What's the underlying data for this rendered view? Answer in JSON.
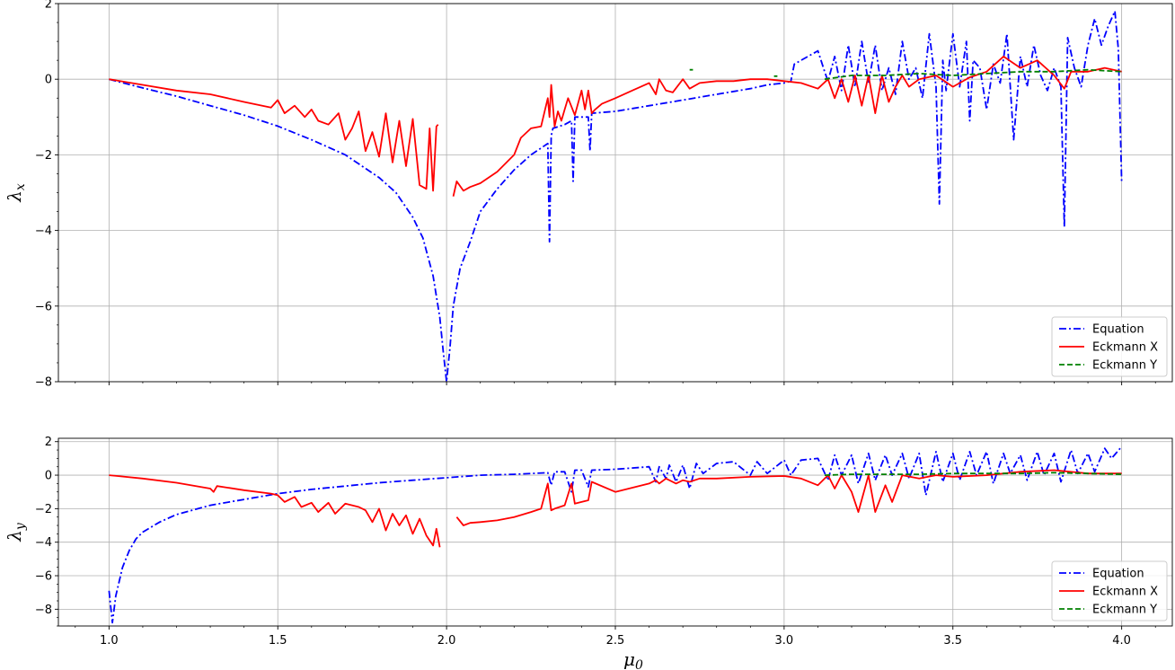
{
  "chart_data": [
    {
      "type": "line",
      "panel": "top",
      "ylabel_main": "λ",
      "ylabel_sub": "x",
      "xlabel": "",
      "xlim": [
        0.85,
        4.15
      ],
      "ylim": [
        -8,
        2
      ],
      "xticks": [
        1.0,
        1.5,
        2.0,
        2.5,
        3.0,
        3.5,
        4.0
      ],
      "xtick_labels": [
        "",
        "",
        "",
        "",
        "",
        "",
        ""
      ],
      "yticks": [
        -8,
        -6,
        -4,
        -2,
        0,
        2
      ],
      "ytick_labels": [
        "−8",
        "−6",
        "−4",
        "−2",
        "0",
        "2"
      ],
      "grid": true,
      "legend": "bottom-right",
      "series": [
        {
          "name": "Equation",
          "color": "#0000ff",
          "style": "dashdot",
          "x": [
            1.0,
            1.1,
            1.2,
            1.3,
            1.4,
            1.5,
            1.6,
            1.7,
            1.8,
            1.85,
            1.9,
            1.93,
            1.96,
            1.98,
            1.99,
            2.0,
            2.01,
            2.02,
            2.04,
            2.07,
            2.1,
            2.15,
            2.2,
            2.25,
            2.3,
            2.305,
            2.31,
            2.315,
            2.35,
            2.37,
            2.375,
            2.38,
            2.42,
            2.425,
            2.43,
            2.5,
            2.6,
            2.7,
            2.8,
            2.9,
            2.95,
            3.0,
            3.02,
            3.03,
            3.1,
            3.12,
            3.13,
            3.15,
            3.17,
            3.19,
            3.21,
            3.23,
            3.25,
            3.27,
            3.29,
            3.31,
            3.33,
            3.35,
            3.37,
            3.39,
            3.41,
            3.43,
            3.45,
            3.46,
            3.47,
            3.48,
            3.5,
            3.52,
            3.54,
            3.55,
            3.56,
            3.58,
            3.6,
            3.62,
            3.64,
            3.66,
            3.68,
            3.7,
            3.72,
            3.74,
            3.76,
            3.78,
            3.8,
            3.82,
            3.83,
            3.84,
            3.86,
            3.88,
            3.9,
            3.92,
            3.94,
            3.96,
            3.98,
            3.99,
            4.0
          ],
          "y": [
            0.0,
            -0.23,
            -0.45,
            -0.7,
            -0.95,
            -1.24,
            -1.6,
            -2.0,
            -2.6,
            -3.0,
            -3.65,
            -4.2,
            -5.2,
            -6.3,
            -7.2,
            -8.0,
            -7.1,
            -6.0,
            -5.0,
            -4.3,
            -3.5,
            -2.9,
            -2.4,
            -2.0,
            -1.7,
            -4.3,
            -1.5,
            -1.3,
            -1.2,
            -1.1,
            -2.7,
            -1.0,
            -1.0,
            -1.9,
            -0.9,
            -0.85,
            -0.7,
            -0.55,
            -0.4,
            -0.25,
            -0.15,
            -0.1,
            -0.05,
            0.4,
            0.75,
            0.2,
            -0.05,
            0.6,
            -0.3,
            0.9,
            -0.2,
            1.0,
            -0.1,
            0.9,
            -0.3,
            0.3,
            -0.4,
            1.0,
            0.0,
            0.3,
            -0.5,
            1.2,
            -0.2,
            -3.3,
            0.5,
            -0.3,
            1.2,
            -0.2,
            1.0,
            -1.1,
            0.5,
            0.3,
            -0.8,
            0.4,
            -0.1,
            1.2,
            -1.6,
            0.6,
            -0.2,
            0.9,
            0.1,
            -0.3,
            0.3,
            -0.2,
            -3.9,
            1.1,
            0.3,
            -0.2,
            0.9,
            1.6,
            0.9,
            1.4,
            1.8,
            0.8,
            -2.7
          ]
        },
        {
          "name": "Eckmann X",
          "color": "#ff0000",
          "style": "solid",
          "x": [
            1.0,
            1.1,
            1.2,
            1.3,
            1.4,
            1.48,
            1.5,
            1.52,
            1.55,
            1.58,
            1.6,
            1.62,
            1.65,
            1.68,
            1.7,
            1.72,
            1.74,
            1.76,
            1.78,
            1.8,
            1.82,
            1.84,
            1.86,
            1.88,
            1.9,
            1.92,
            1.94,
            1.95,
            1.96,
            1.97,
            1.975,
            null,
            2.02,
            2.03,
            2.05,
            2.07,
            2.1,
            2.15,
            2.2,
            2.22,
            2.25,
            2.28,
            2.3,
            2.305,
            2.31,
            2.32,
            2.33,
            2.34,
            2.35,
            2.36,
            2.38,
            2.4,
            2.41,
            2.42,
            2.43,
            2.44,
            2.46,
            2.5,
            2.55,
            2.6,
            2.62,
            2.63,
            2.65,
            2.67,
            2.7,
            2.72,
            2.75,
            2.8,
            2.85,
            2.9,
            2.95,
            3.0,
            3.05,
            3.1,
            3.13,
            3.15,
            3.17,
            3.19,
            3.21,
            3.23,
            3.25,
            3.27,
            3.29,
            3.31,
            3.33,
            3.35,
            3.37,
            3.4,
            3.45,
            3.5,
            3.55,
            3.6,
            3.65,
            3.7,
            3.75,
            3.8,
            3.83,
            3.85,
            3.9,
            3.95,
            4.0
          ],
          "y": [
            0.0,
            -0.15,
            -0.3,
            -0.4,
            -0.6,
            -0.75,
            -0.55,
            -0.9,
            -0.7,
            -1.0,
            -0.8,
            -1.1,
            -1.2,
            -0.9,
            -1.6,
            -1.3,
            -0.85,
            -1.9,
            -1.4,
            -2.05,
            -0.9,
            -2.2,
            -1.1,
            -2.3,
            -1.05,
            -2.8,
            -2.9,
            -1.3,
            -2.95,
            -1.25,
            -1.2,
            null,
            -3.1,
            -2.7,
            -2.95,
            -2.85,
            -2.75,
            -2.45,
            -2.0,
            -1.55,
            -1.3,
            -1.25,
            -0.5,
            -1.0,
            -0.15,
            -1.25,
            -0.85,
            -1.1,
            -0.8,
            -0.5,
            -0.95,
            -0.3,
            -0.8,
            -0.3,
            -0.9,
            -0.8,
            -0.65,
            -0.5,
            -0.3,
            -0.1,
            -0.4,
            0.0,
            -0.3,
            -0.35,
            0.0,
            -0.25,
            -0.1,
            -0.05,
            -0.05,
            0.0,
            0.0,
            -0.05,
            -0.1,
            -0.25,
            0.0,
            -0.5,
            0.0,
            -0.6,
            0.1,
            -0.7,
            0.1,
            -0.9,
            0.1,
            -0.6,
            -0.2,
            0.1,
            -0.2,
            0.0,
            0.1,
            -0.2,
            0.05,
            0.2,
            0.6,
            0.3,
            0.5,
            0.1,
            -0.25,
            0.2,
            0.2,
            0.3,
            0.2
          ]
        },
        {
          "name": "Eckmann Y",
          "color": "#008000",
          "style": "dashed",
          "x": [
            2.72,
            2.73,
            null,
            2.97,
            2.98,
            null,
            3.12,
            3.2,
            3.3,
            3.4,
            3.5,
            3.6,
            3.7,
            3.8,
            3.9,
            4.0
          ],
          "y": [
            0.25,
            0.25,
            null,
            0.08,
            0.08,
            null,
            0.0,
            0.1,
            0.1,
            0.15,
            0.1,
            0.15,
            0.2,
            0.2,
            0.25,
            0.2
          ]
        }
      ]
    },
    {
      "type": "line",
      "panel": "bottom",
      "ylabel_main": "λ",
      "ylabel_sub": "y",
      "xlabel_main": "μ",
      "xlabel_sub": "0",
      "xlim": [
        0.85,
        4.15
      ],
      "ylim": [
        -9,
        2.2
      ],
      "xticks": [
        1.0,
        1.5,
        2.0,
        2.5,
        3.0,
        3.5,
        4.0
      ],
      "xtick_labels": [
        "1.0",
        "1.5",
        "2.0",
        "2.5",
        "3.0",
        "3.5",
        "4.0"
      ],
      "yticks": [
        -8,
        -6,
        -4,
        -2,
        0,
        2
      ],
      "ytick_labels": [
        "−8",
        "−6",
        "−4",
        "−2",
        "0",
        "2"
      ],
      "grid": true,
      "legend": "bottom-right",
      "series": [
        {
          "name": "Equation",
          "color": "#0000ff",
          "style": "dashdot",
          "x": [
            1.0,
            1.01,
            1.02,
            1.04,
            1.06,
            1.08,
            1.1,
            1.15,
            1.2,
            1.3,
            1.4,
            1.5,
            1.6,
            1.7,
            1.8,
            1.9,
            2.0,
            2.1,
            2.2,
            2.3,
            2.31,
            2.32,
            2.35,
            2.37,
            2.38,
            2.4,
            2.42,
            2.43,
            2.5,
            2.6,
            2.62,
            2.63,
            2.65,
            2.66,
            2.68,
            2.7,
            2.72,
            2.74,
            2.76,
            2.8,
            2.85,
            2.9,
            2.92,
            2.95,
            3.0,
            3.02,
            3.05,
            3.1,
            3.13,
            3.15,
            3.17,
            3.2,
            3.22,
            3.25,
            3.27,
            3.3,
            3.32,
            3.35,
            3.37,
            3.4,
            3.42,
            3.45,
            3.47,
            3.5,
            3.52,
            3.55,
            3.57,
            3.6,
            3.62,
            3.65,
            3.67,
            3.7,
            3.72,
            3.75,
            3.77,
            3.8,
            3.82,
            3.85,
            3.87,
            3.9,
            3.92,
            3.95,
            3.97,
            4.0
          ],
          "y": [
            -6.9,
            -8.8,
            -7.2,
            -5.5,
            -4.5,
            -3.8,
            -3.4,
            -2.8,
            -2.35,
            -1.8,
            -1.45,
            -1.1,
            -0.85,
            -0.65,
            -0.45,
            -0.3,
            -0.15,
            0.0,
            0.05,
            0.15,
            -0.6,
            0.2,
            0.2,
            -1.0,
            0.3,
            0.3,
            -0.7,
            0.3,
            0.35,
            0.5,
            -0.4,
            0.5,
            -0.2,
            0.6,
            -0.4,
            0.6,
            -0.8,
            0.7,
            0.1,
            0.7,
            0.8,
            0.0,
            0.8,
            0.1,
            0.9,
            0.0,
            0.9,
            1.0,
            -0.3,
            1.2,
            0.0,
            1.2,
            -0.5,
            1.3,
            -0.3,
            1.2,
            0.0,
            1.3,
            -0.2,
            1.3,
            -1.2,
            1.4,
            -0.4,
            1.3,
            -0.3,
            1.4,
            0.0,
            1.4,
            -0.5,
            1.3,
            0.1,
            1.2,
            -0.3,
            1.4,
            0.0,
            1.3,
            -0.4,
            1.5,
            0.1,
            1.3,
            0.2,
            1.6,
            1.0,
            1.7
          ]
        },
        {
          "name": "Eckmann X",
          "color": "#ff0000",
          "style": "solid",
          "x": [
            1.0,
            1.1,
            1.2,
            1.3,
            1.31,
            1.32,
            1.4,
            1.48,
            1.5,
            1.52,
            1.55,
            1.57,
            1.6,
            1.62,
            1.65,
            1.67,
            1.7,
            1.72,
            1.74,
            1.76,
            1.78,
            1.8,
            1.82,
            1.84,
            1.86,
            1.88,
            1.9,
            1.92,
            1.94,
            1.96,
            1.97,
            1.98,
            null,
            2.03,
            2.05,
            2.07,
            2.1,
            2.15,
            2.2,
            2.25,
            2.28,
            2.3,
            2.31,
            2.32,
            2.35,
            2.37,
            2.38,
            2.4,
            2.42,
            2.43,
            2.5,
            2.6,
            2.62,
            2.63,
            2.65,
            2.68,
            2.7,
            2.72,
            2.75,
            2.8,
            2.9,
            3.0,
            3.05,
            3.1,
            3.13,
            3.15,
            3.17,
            3.2,
            3.22,
            3.25,
            3.27,
            3.3,
            3.32,
            3.35,
            3.4,
            3.45,
            3.5,
            3.6,
            3.7,
            3.8,
            3.9,
            4.0
          ],
          "y": [
            0.0,
            -0.2,
            -0.45,
            -0.8,
            -1.0,
            -0.65,
            -0.9,
            -1.1,
            -1.2,
            -1.6,
            -1.3,
            -1.9,
            -1.65,
            -2.2,
            -1.65,
            -2.3,
            -1.7,
            -1.8,
            -1.9,
            -2.1,
            -2.8,
            -2.0,
            -3.3,
            -2.3,
            -3.0,
            -2.4,
            -3.5,
            -2.6,
            -3.6,
            -4.2,
            -3.2,
            -4.3,
            null,
            -2.5,
            -3.0,
            -2.85,
            -2.8,
            -2.7,
            -2.5,
            -2.2,
            -2.0,
            -0.5,
            -2.1,
            -2.0,
            -1.8,
            -0.5,
            -1.7,
            -1.6,
            -1.5,
            -0.4,
            -1.0,
            -0.5,
            -0.3,
            -0.5,
            -0.2,
            -0.5,
            -0.3,
            -0.4,
            -0.2,
            -0.2,
            -0.1,
            -0.05,
            -0.2,
            -0.6,
            0.0,
            -0.8,
            0.0,
            -1.0,
            -2.2,
            0.0,
            -2.2,
            -0.6,
            -1.6,
            0.0,
            -0.2,
            0.0,
            -0.1,
            0.0,
            0.2,
            0.3,
            0.1,
            0.1
          ]
        },
        {
          "name": "Eckmann Y",
          "color": "#008000",
          "style": "dashed",
          "x": [
            3.12,
            3.2,
            3.3,
            3.4,
            3.5,
            3.6,
            3.7,
            3.8,
            3.9,
            4.0
          ],
          "y": [
            0.0,
            0.05,
            0.05,
            0.05,
            0.1,
            0.1,
            0.1,
            0.15,
            0.1,
            0.05
          ]
        }
      ]
    }
  ]
}
